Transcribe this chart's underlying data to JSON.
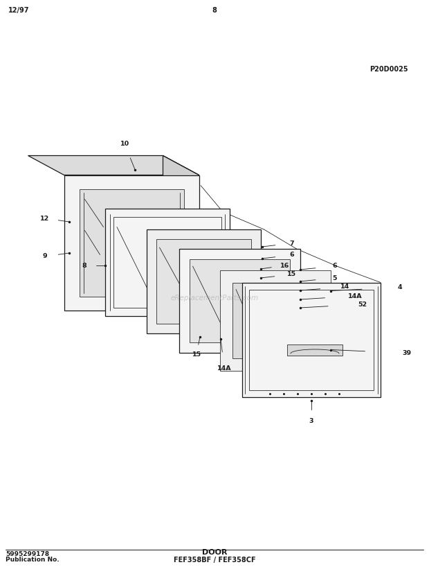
{
  "title_model": "FEF358BF / FEF358CF",
  "title_section": "DOOR",
  "pub_no_label": "Publication No.",
  "pub_no": "5995299178",
  "diagram_code": "P20D0025",
  "date": "12/97",
  "page": "8",
  "bg_color": "#ffffff",
  "line_color": "#1a1a1a",
  "watermark": "eReplacementParts.com"
}
